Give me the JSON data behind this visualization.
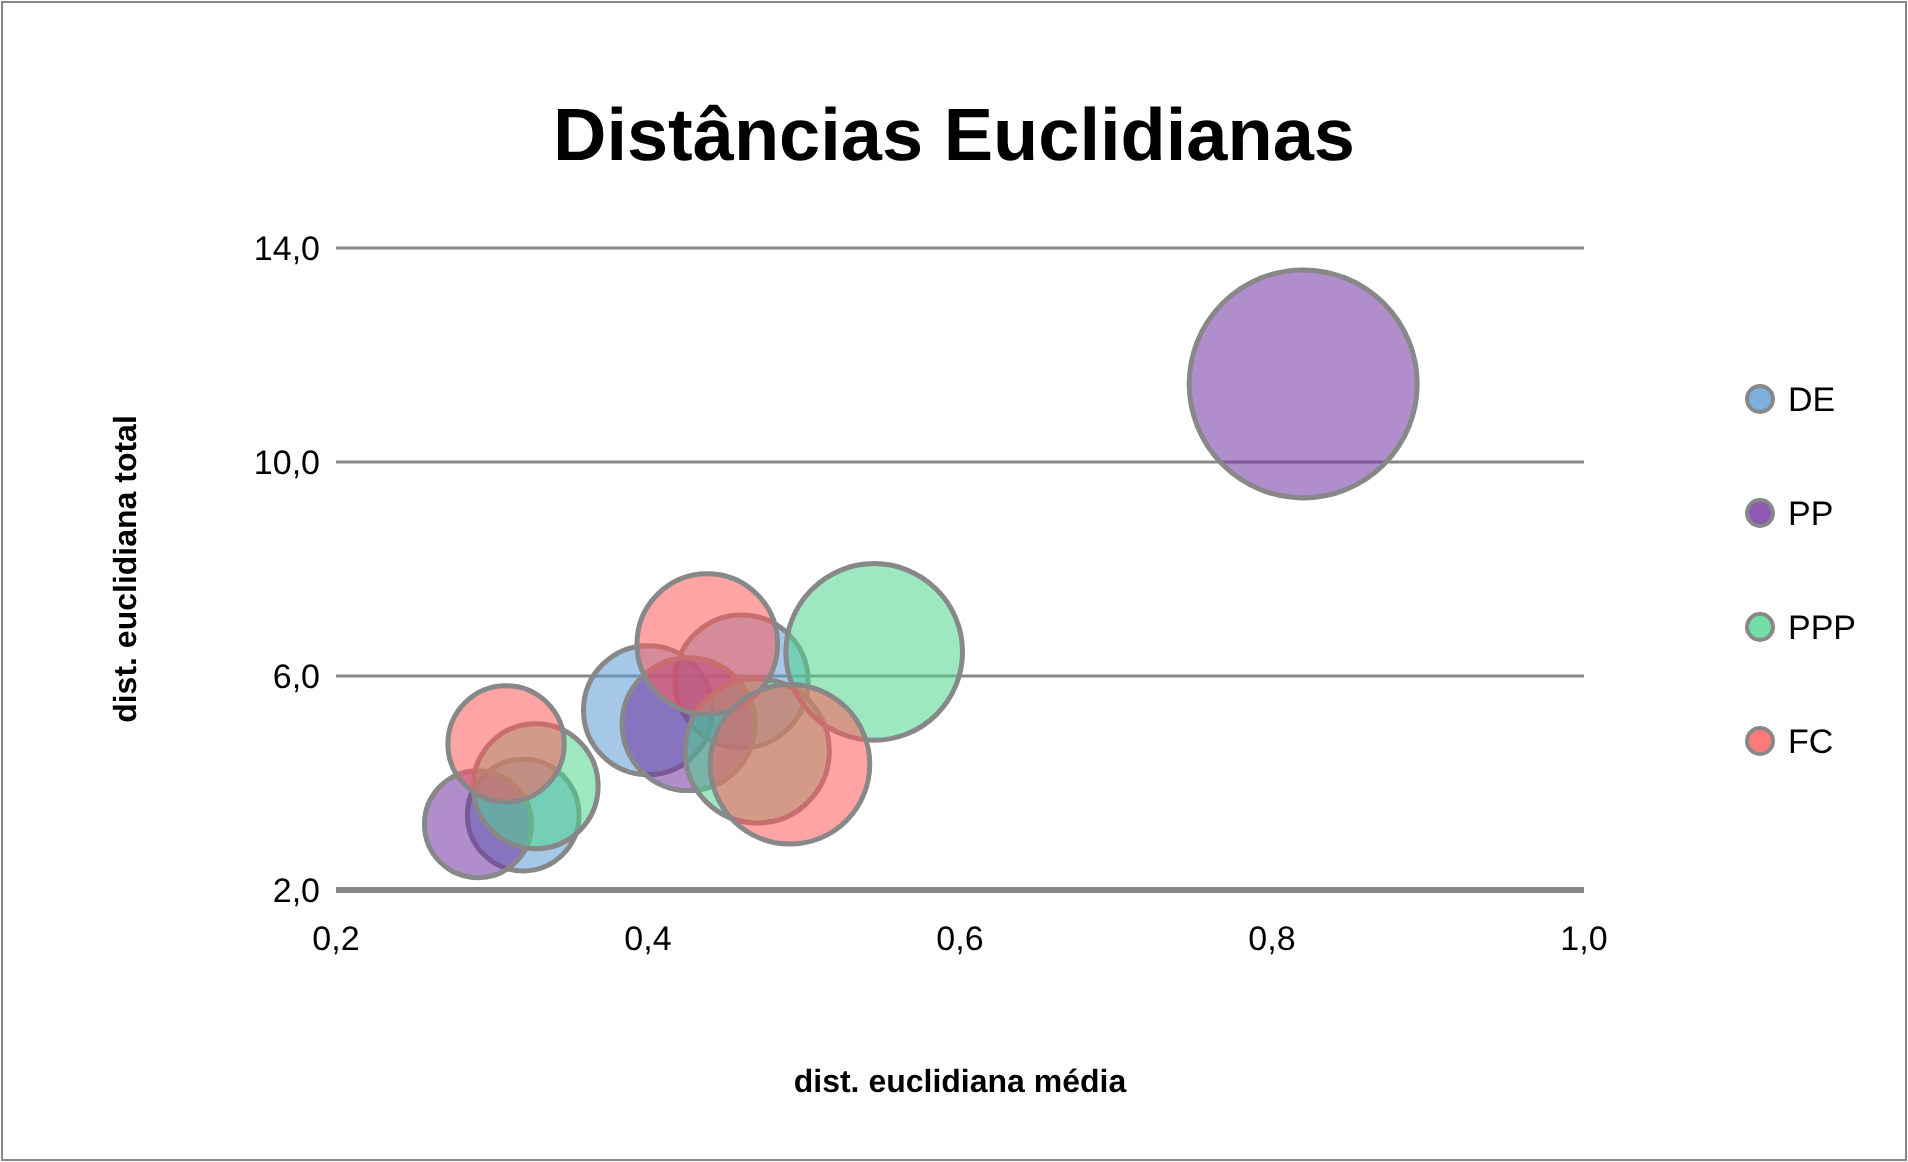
{
  "chart_data": {
    "type": "bubble",
    "title": "Distâncias Euclidianas",
    "xlabel": "dist. euclidiana média",
    "ylabel": "dist. euclidiana  total",
    "xlim": [
      0.2,
      1.0
    ],
    "xticks": [
      {
        "value": 0.2,
        "label": "0,2"
      },
      {
        "value": 0.4,
        "label": "0,4"
      },
      {
        "value": 0.6,
        "label": "0,6"
      },
      {
        "value": 0.8,
        "label": "0,8"
      },
      {
        "value": 1.0,
        "label": "1,0"
      }
    ],
    "ylim": [
      2,
      14
    ],
    "yticks": [
      {
        "value": 2,
        "label": "2,0"
      },
      {
        "value": 6,
        "label": "6,0"
      },
      {
        "value": 10,
        "label": "10,0"
      },
      {
        "value": 14,
        "label": "14,0"
      }
    ],
    "grid": "y",
    "legend": "right",
    "series": [
      {
        "name": "DE",
        "color": "#5b9bd5",
        "x": [
          0.32,
          0.4,
          0.46
        ],
        "values": [
          3.4,
          5.36,
          5.9
        ],
        "sizes": [
          0.24,
          0.32,
          0.34
        ]
      },
      {
        "name": "PP",
        "color": "#7030a0",
        "x": [
          0.291,
          0.426,
          0.82
        ],
        "values": [
          3.23,
          5.1,
          11.46
        ],
        "sizes": [
          0.22,
          0.34,
          1
        ]
      },
      {
        "name": "PPP",
        "color": "#4fd68e",
        "x": [
          0.328,
          0.47,
          0.545
        ],
        "values": [
          3.94,
          4.6,
          6.45
        ],
        "sizes": [
          0.3,
          0.4,
          0.6
        ]
      },
      {
        "name": "FC",
        "color": "#ff5a5a",
        "x": [
          0.309,
          0.438,
          0.491
        ],
        "values": [
          4.73,
          6.6,
          4.35
        ],
        "sizes": [
          0.26,
          0.38,
          0.49
        ]
      }
    ]
  }
}
